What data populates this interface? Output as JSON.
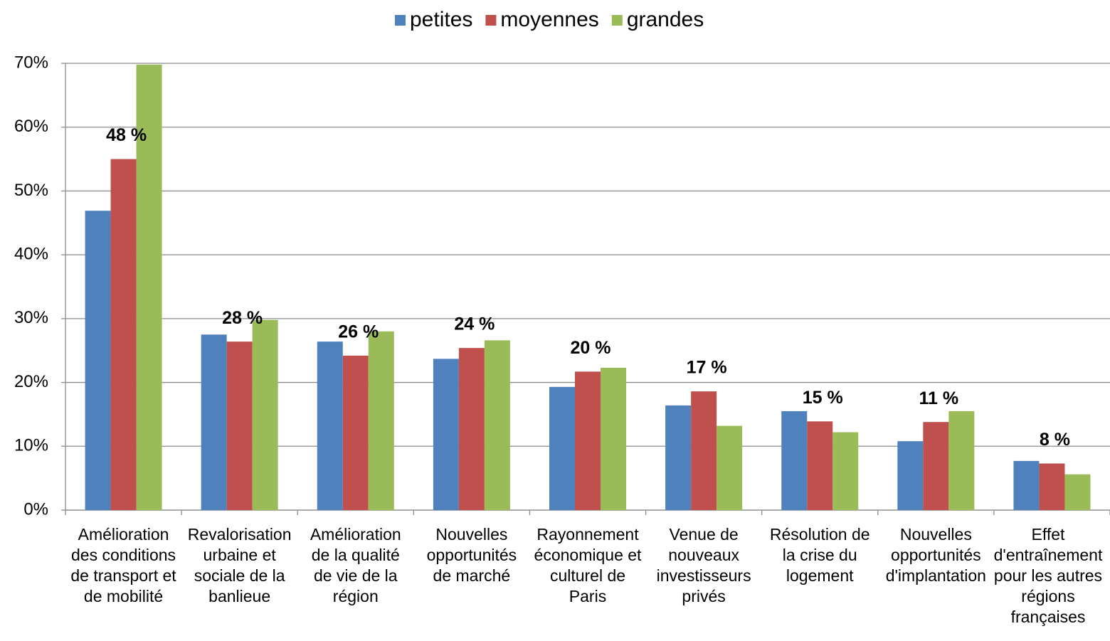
{
  "chart_data": {
    "type": "bar",
    "categories": [
      "Amélioration\ndes conditions\nde transport et\nde mobilité",
      "Revalorisation\nurbaine et\nsociale de la\nbanlieue",
      "Amélioration\nde la qualité\nde vie de la\nrégion",
      "Nouvelles\nopportunités\nde marché",
      "Rayonnement\néconomique et\nculturel de\nParis",
      "Venue de\nnouveaux\ninvestisseurs\nprivés",
      "Résolution de\nla crise du\nlogement",
      "Nouvelles\nopportunités\nd'implantation",
      "Effet\nd'entraînement\npour les autres\nrégions\nfrançaises"
    ],
    "series": [
      {
        "name": "petites",
        "color": "#4f81bd",
        "values": [
          46.9,
          27.5,
          26.4,
          23.7,
          19.3,
          16.4,
          15.5,
          10.8,
          7.7
        ]
      },
      {
        "name": "moyennes",
        "color": "#c0504d",
        "values": [
          55,
          26.4,
          24.2,
          25.4,
          21.7,
          18.6,
          13.9,
          13.8,
          7.3
        ]
      },
      {
        "name": "grandes",
        "color": "#9bbb59",
        "values": [
          69.8,
          29.8,
          28,
          26.6,
          22.3,
          13.2,
          12.2,
          15.5,
          5.6
        ]
      }
    ],
    "annotations": [
      "48 %",
      "28 %",
      "26 %",
      "24 %",
      "20 %",
      "17 %",
      "15 %",
      "11 %",
      "8 %"
    ],
    "ylim": [
      0,
      70
    ],
    "yticks": [
      {
        "value": 0,
        "label": "0%"
      },
      {
        "value": 10,
        "label": "10%"
      },
      {
        "value": 20,
        "label": "20%"
      },
      {
        "value": 30,
        "label": "30%"
      },
      {
        "value": 40,
        "label": "40%"
      },
      {
        "value": 50,
        "label": "50%"
      },
      {
        "value": 60,
        "label": "60%"
      },
      {
        "value": 70,
        "label": "70%"
      }
    ],
    "grid": true,
    "legend": "top"
  }
}
